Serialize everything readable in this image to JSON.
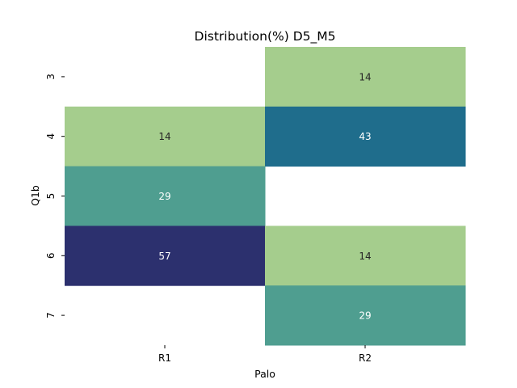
{
  "chart_data": {
    "type": "heatmap",
    "title": "Distribution(%) D5_M5",
    "xlabel": "Palo",
    "ylabel": "Q1b",
    "x_categories": [
      "R1",
      "R2"
    ],
    "y_categories": [
      "3",
      "4",
      "5",
      "6",
      "7"
    ],
    "values": [
      [
        null,
        14
      ],
      [
        14,
        43
      ],
      [
        29,
        null
      ],
      [
        57,
        14
      ],
      [
        null,
        29
      ]
    ],
    "colormap": "crest",
    "color_range": [
      14,
      57
    ],
    "colorbar": false,
    "annotations": true,
    "colors": {
      "14": "#a5cd8d",
      "29": "#4f9e90",
      "43": "#1f6d8c",
      "57": "#2c306e"
    }
  }
}
